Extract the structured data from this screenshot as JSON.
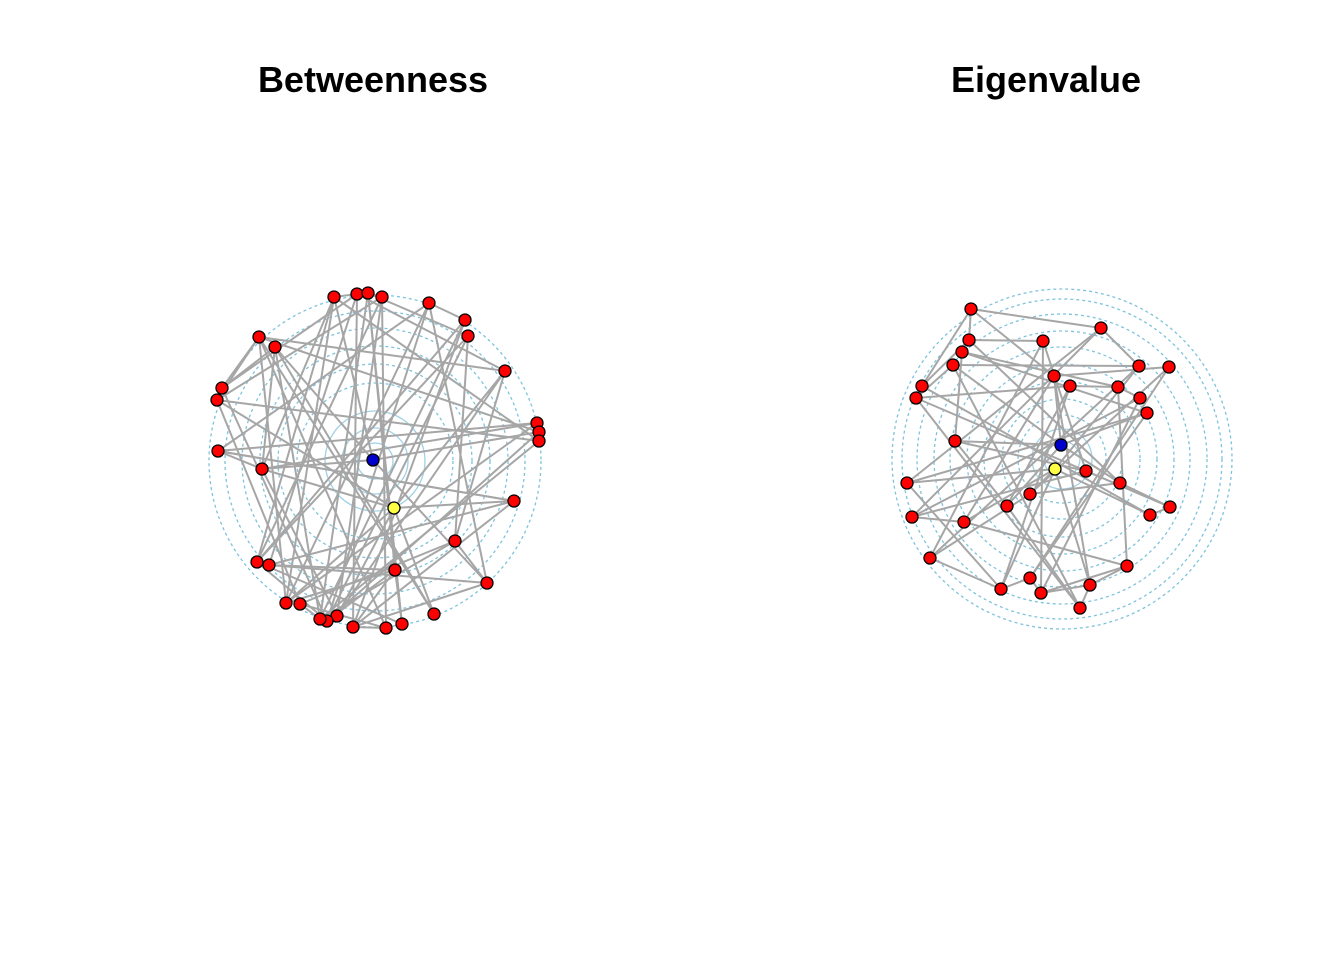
{
  "panels": [
    {
      "title": "Betweenness",
      "colors": {
        "node": "#ff0000",
        "highlight_1": "#0000cc",
        "highlight_2": "#ffff44",
        "edge": "#a6a6a6",
        "ring": "#7ec3dd"
      }
    },
    {
      "title": "Eigenvalue",
      "colors": {
        "node": "#ff0000",
        "highlight_1": "#0000cc",
        "highlight_2": "#ffff44",
        "edge": "#a6a6a6",
        "ring": "#7ec3dd"
      }
    }
  ]
}
